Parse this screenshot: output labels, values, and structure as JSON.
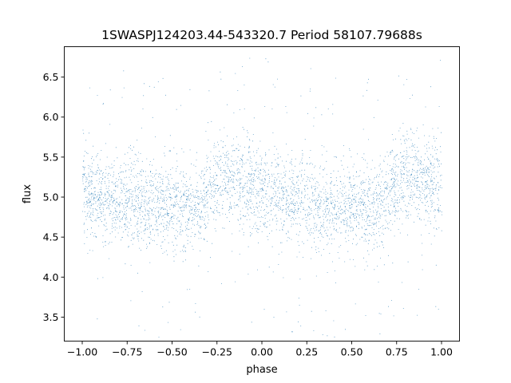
{
  "chart_data": {
    "type": "scatter",
    "title": "1SWASPJ124203.44-543320.7 Period 58107.79688s",
    "xlabel": "phase",
    "ylabel": "flux",
    "xlim": [
      -1.1,
      1.1
    ],
    "ylim": [
      3.2,
      6.88
    ],
    "xticks": [
      -1.0,
      -0.75,
      -0.5,
      -0.25,
      0.0,
      0.25,
      0.5,
      0.75,
      1.0
    ],
    "xtick_labels": [
      "−1.00",
      "−0.75",
      "−0.50",
      "−0.25",
      "0.00",
      "0.25",
      "0.50",
      "0.75",
      "1.00"
    ],
    "yticks": [
      3.5,
      4.0,
      4.5,
      5.0,
      5.5,
      6.0,
      6.5
    ],
    "ytick_labels": [
      "3.5",
      "4.0",
      "4.5",
      "5.0",
      "5.5",
      "6.0",
      "6.5"
    ],
    "grid": false,
    "marker_color": "#1f77b4",
    "series": [
      {
        "phase_range": [
          -1.0,
          1.0
        ],
        "approx_point_count": 16000,
        "mean_flux_profile": {
          "phase": [
            0.0,
            0.1,
            0.2,
            0.3,
            0.4,
            0.5,
            0.6,
            0.65,
            0.7,
            0.75,
            0.8,
            0.85,
            0.9,
            0.95,
            1.0
          ],
          "flux": [
            5.05,
            5.0,
            4.97,
            4.93,
            4.9,
            4.88,
            4.86,
            4.85,
            5.05,
            5.2,
            5.25,
            5.23,
            5.18,
            5.12,
            5.05
          ]
        },
        "scatter_sigma": 0.27
      }
    ]
  }
}
